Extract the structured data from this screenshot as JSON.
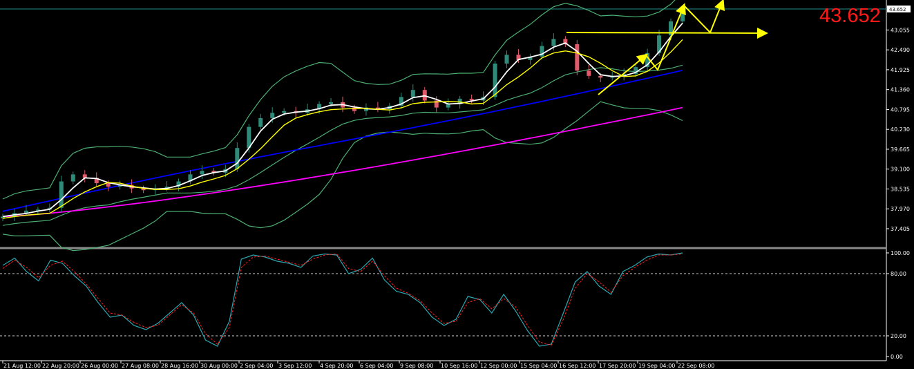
{
  "price_display": "43.652",
  "chart_data": {
    "type": "candlestick",
    "price_panel": {
      "y_ticks": [
        "43.652",
        "43.055",
        "42.490",
        "41.925",
        "41.360",
        "40.795",
        "40.230",
        "39.665",
        "39.100",
        "38.535",
        "37.970",
        "37.405"
      ],
      "ylim": [
        36.82,
        43.7
      ],
      "candles_close_approx": [
        37.75,
        37.85,
        37.92,
        37.95,
        38.0,
        38.75,
        38.95,
        38.85,
        38.7,
        38.6,
        38.65,
        38.55,
        38.5,
        38.55,
        38.6,
        38.75,
        38.95,
        39.05,
        39.0,
        39.1,
        39.7,
        40.3,
        40.55,
        40.7,
        40.75,
        40.7,
        40.8,
        40.95,
        41.0,
        40.85,
        40.75,
        40.85,
        40.8,
        40.9,
        41.15,
        41.35,
        41.05,
        40.85,
        40.95,
        41.1,
        41.05,
        41.15,
        42.1,
        42.35,
        42.2,
        42.3,
        42.6,
        42.8,
        42.65,
        41.9,
        41.75,
        41.7,
        41.75,
        41.8,
        42.0,
        42.4,
        42.9,
        43.3,
        43.55
      ],
      "indicators": [
        {
          "color": "#ffffff",
          "kind": "sma-fast"
        },
        {
          "color": "#ffff00",
          "kind": "sma-medium"
        },
        {
          "color": "#4caf72",
          "kind": "bollinger-bands"
        },
        {
          "color": "#0000ff",
          "kind": "sma-slow"
        },
        {
          "color": "#ff00ff",
          "kind": "sma-very-slow"
        }
      ]
    },
    "oscillator_panel": {
      "y_ticks": [
        "100.00",
        "80.00",
        "20.00",
        "0.00"
      ],
      "ylim": [
        0,
        100
      ],
      "levels": [
        80,
        20
      ],
      "main_line": [
        88,
        95,
        82,
        73,
        93,
        90,
        78,
        68,
        52,
        38,
        40,
        30,
        26,
        32,
        42,
        52,
        40,
        16,
        10,
        34,
        94,
        98,
        96,
        92,
        90,
        86,
        97,
        99,
        98,
        80,
        84,
        95,
        74,
        63,
        60,
        52,
        38,
        30,
        36,
        58,
        55,
        42,
        60,
        44,
        25,
        10,
        12,
        42,
        72,
        82,
        68,
        60,
        82,
        88,
        96,
        99,
        98,
        100
      ],
      "signal_line": [
        85,
        93,
        86,
        76,
        88,
        92,
        82,
        70,
        56,
        42,
        40,
        33,
        28,
        30,
        40,
        50,
        42,
        22,
        12,
        28,
        86,
        96,
        97,
        94,
        91,
        88,
        94,
        98,
        99,
        85,
        82,
        92,
        78,
        66,
        61,
        54,
        42,
        32,
        34,
        52,
        56,
        46,
        56,
        48,
        30,
        14,
        11,
        36,
        66,
        80,
        72,
        62,
        78,
        86,
        93,
        98,
        98,
        99
      ],
      "main_color": "#2aa7b0",
      "signal_color": "#ff2020"
    },
    "x_ticks": [
      "21 Aug 12:00",
      "22 Aug 20:00",
      "26 Aug 00:00",
      "27 Aug 08:00",
      "28 Aug 16:00",
      "30 Aug 00:00",
      "2 Sep 04:00",
      "3 Sep 12:00",
      "4 Sep 20:00",
      "6 Sep 04:00",
      "9 Sep 08:00",
      "10 Sep 16:00",
      "12 Sep 00:00",
      "15 Sep 04:00",
      "16 Sep 12:00",
      "17 Sep 20:00",
      "19 Sep 04:00",
      "22 Sep 08:00"
    ],
    "annotations": {
      "arrow_color": "#ffff00",
      "description": "yellow trend arrows and horizontal support arrow"
    },
    "colors": {
      "background": "#000000",
      "bull_candle": "#2e8b7a",
      "bear_candle": "#e05a6a",
      "current_price_line": "#1f8f8f"
    }
  }
}
